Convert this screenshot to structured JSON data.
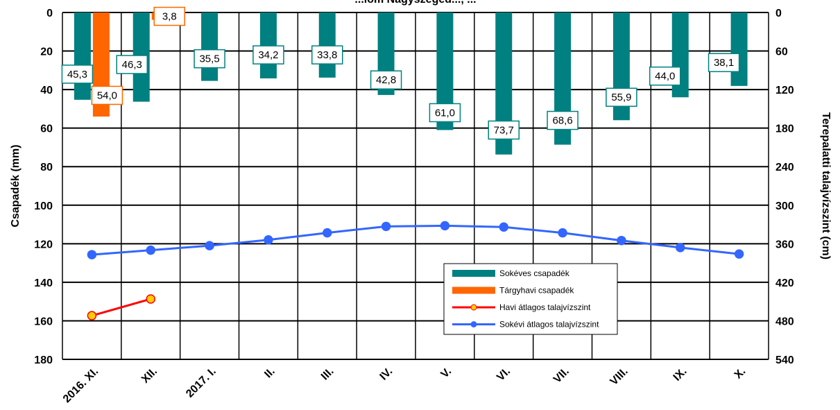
{
  "chart_data": {
    "type": "bar",
    "title": "...lom Nagyszeged..., ...",
    "categories": [
      "2016. XI.",
      "XII.",
      "2017. I.",
      "II.",
      "III.",
      "IV.",
      "V.",
      "VI.",
      "VII.",
      "VIII.",
      "IX.",
      "X."
    ],
    "ylabel": "Csapadék (mm)",
    "y2label": "Terepalatti talajvízszint (cm)",
    "ylim": [
      0,
      180
    ],
    "y2lim": [
      0,
      540
    ],
    "y_inverted": true,
    "yticks": [
      0,
      20,
      40,
      60,
      80,
      100,
      120,
      140,
      160,
      180
    ],
    "y2ticks": [
      0,
      60,
      120,
      180,
      240,
      300,
      360,
      420,
      480,
      540
    ],
    "grid": true,
    "legend_position": "bottom-right",
    "series": [
      {
        "name": "Sokéves csapadék",
        "kind": "bar",
        "axis": "left",
        "color": "#008080",
        "values": [
          45.3,
          46.3,
          35.5,
          34.2,
          33.8,
          42.8,
          61.0,
          73.7,
          68.6,
          55.9,
          44.0,
          38.1
        ],
        "labels": [
          "45,3",
          "46,3",
          "35,5",
          "34,2",
          "33,8",
          "42,8",
          "61,0",
          "73,7",
          "68,6",
          "55,9",
          "44,0",
          "38,1"
        ]
      },
      {
        "name": "Tárgyhavi csapadék",
        "kind": "bar",
        "axis": "left",
        "color": "#ff6600",
        "values": [
          54.0,
          3.8,
          null,
          null,
          null,
          null,
          null,
          null,
          null,
          null,
          null,
          null
        ],
        "labels": [
          "54,0",
          "3,8",
          "",
          "",
          "",
          "",
          "",
          "",
          "",
          "",
          "",
          ""
        ]
      },
      {
        "name": "Havi átlagos talajvízszint",
        "kind": "line",
        "axis": "right",
        "color": "#ff0000",
        "marker_color": "#ff0000",
        "marker_fill": "#ffcc00",
        "values": [
          472,
          446,
          null,
          null,
          null,
          null,
          null,
          null,
          null,
          null,
          null,
          null
        ]
      },
      {
        "name": "Sokévi átlagos talajvízszint",
        "kind": "line",
        "axis": "right",
        "color": "#3366ff",
        "values": [
          377,
          370,
          363,
          354,
          343,
          333,
          332,
          334,
          343,
          355,
          366,
          376
        ]
      }
    ]
  }
}
